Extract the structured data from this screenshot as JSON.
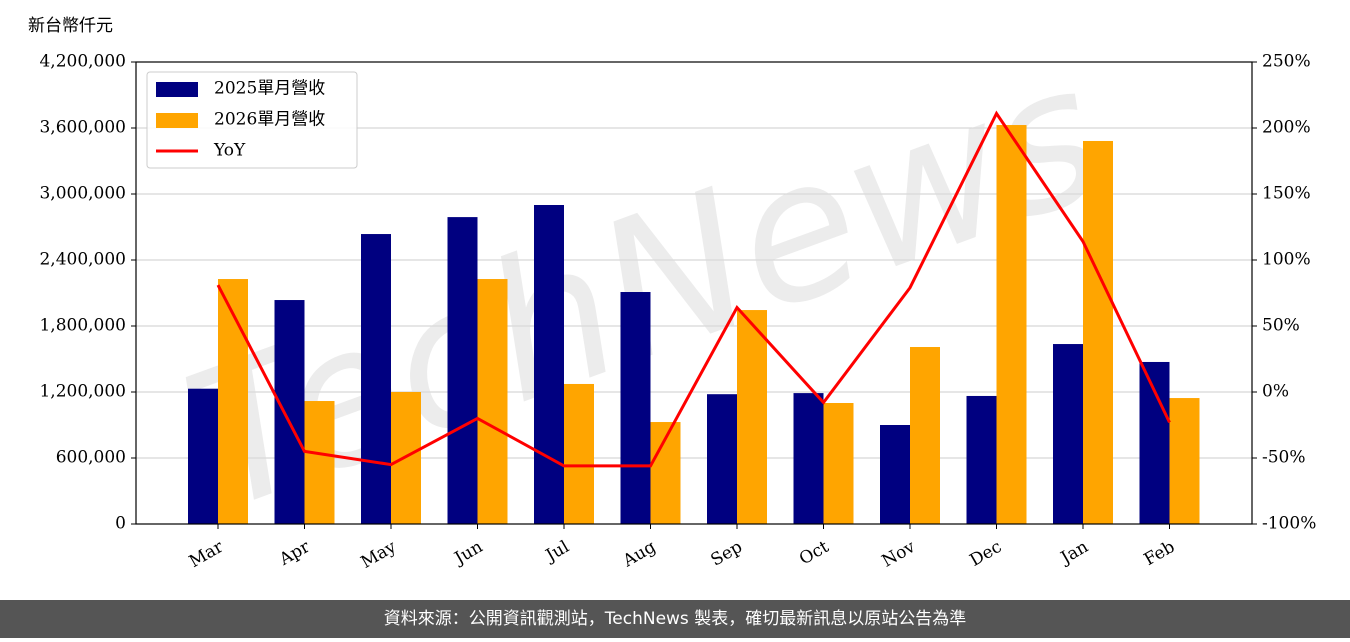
{
  "chart_data": {
    "type": "bar_line",
    "y_label": "新台幣仟元",
    "watermark": "TechNews",
    "source": "資料來源：公開資訊觀測站，TechNews 製表，確切最新訊息以原站公告為準",
    "categories": [
      "Mar",
      "Apr",
      "May",
      "Jun",
      "Jul",
      "Aug",
      "Sep",
      "Oct",
      "Nov",
      "Dec",
      "Jan",
      "Feb"
    ],
    "series": [
      {
        "name": "2025單月營收",
        "color": "#000080",
        "type": "bar",
        "values": [
          1230000,
          2036000,
          2636000,
          2790000,
          2900000,
          2109000,
          1180000,
          1190000,
          900000,
          1164000,
          1636000,
          1473000
        ]
      },
      {
        "name": "2026單月營收",
        "color": "#ffa500",
        "type": "bar",
        "values": [
          2227000,
          1118000,
          1200000,
          2227000,
          1273000,
          927000,
          1945000,
          1100000,
          1609000,
          3627000,
          3482000,
          1145000
        ]
      },
      {
        "name": "YoY",
        "color": "#ff0000",
        "type": "line",
        "axis": "y2",
        "values": [
          81,
          -45,
          -55,
          -20,
          -56,
          -56,
          64,
          -8,
          79,
          211,
          114,
          -23
        ]
      }
    ],
    "ylim": [
      0,
      4200000
    ],
    "yticks": [
      0,
      {
        "value": 600000,
        "label": "600,000"
      },
      {
        "value": 1200000,
        "label": "1,200,000"
      },
      {
        "value": 1800000,
        "label": "1,800,000"
      },
      {
        "value": 2400000,
        "label": "2,400,000"
      },
      {
        "value": 3000000,
        "label": "3,000,000"
      },
      {
        "value": 3600000,
        "label": "3,600,000"
      },
      {
        "value": 4200000,
        "label": "4,200,000"
      }
    ],
    "y2lim": [
      -100,
      250
    ],
    "y2ticks": [
      {
        "value": -100,
        "label": "-100%"
      },
      {
        "value": -50,
        "label": "-50%"
      },
      {
        "value": 0,
        "label": "0%"
      },
      {
        "value": 50,
        "label": "50%"
      },
      {
        "value": 100,
        "label": "100%"
      },
      {
        "value": 150,
        "label": "150%"
      },
      {
        "value": 200,
        "label": "200%"
      },
      {
        "value": 250,
        "label": "250%"
      }
    ],
    "grid": true,
    "legend": "upper left"
  }
}
